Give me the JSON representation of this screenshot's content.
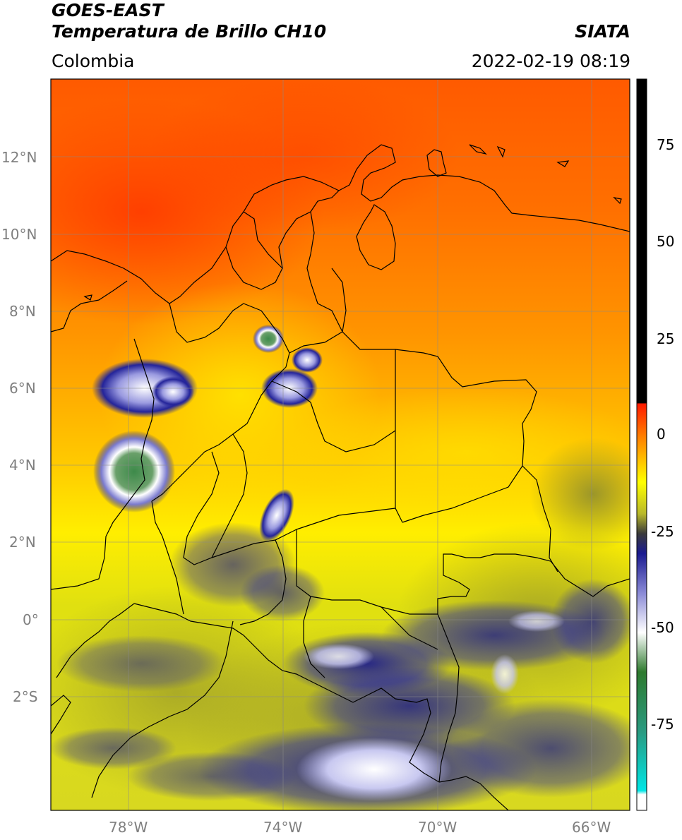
{
  "header": {
    "satellite": "GOES-EAST",
    "product": "Temperatura de Brillo CH10",
    "region": "Colombia",
    "brand": "SIATA",
    "datetime": "2022-02-19 08:19"
  },
  "map": {
    "lat_labels": [
      "12°N",
      "10°N",
      "8°N",
      "6°N",
      "4°N",
      "2°N",
      "0°",
      "2°S"
    ],
    "lon_labels": [
      "78°W",
      "74°W",
      "70°W",
      "66°W"
    ],
    "extent": {
      "lon_min": -80,
      "lon_max": -65,
      "lat_min": -5,
      "lat_max": 14
    }
  },
  "colorbar": {
    "ticks": [
      "75",
      "50",
      "25",
      "0",
      "-25",
      "-50",
      "-75"
    ],
    "range": [
      -95,
      90
    ],
    "stops": [
      {
        "value": 90,
        "color": "#000000"
      },
      {
        "value": 8,
        "color": "#000000"
      },
      {
        "value": 7.9,
        "color": "#ff1a00"
      },
      {
        "value": 0,
        "color": "#ff7a00"
      },
      {
        "value": -12,
        "color": "#ffff00"
      },
      {
        "value": -20,
        "color": "#b8b82a"
      },
      {
        "value": -25,
        "color": "#3a3a3a"
      },
      {
        "value": -30,
        "color": "#1a1a90"
      },
      {
        "value": -40,
        "color": "#8a8ad6"
      },
      {
        "value": -50,
        "color": "#ffffff"
      },
      {
        "value": -60,
        "color": "#2e7a2e"
      },
      {
        "value": -75,
        "color": "#2a9a80"
      },
      {
        "value": -90,
        "color": "#00e5e5"
      },
      {
        "value": -91,
        "color": "#ffffff"
      },
      {
        "value": -95,
        "color": "#ffffff"
      }
    ]
  }
}
